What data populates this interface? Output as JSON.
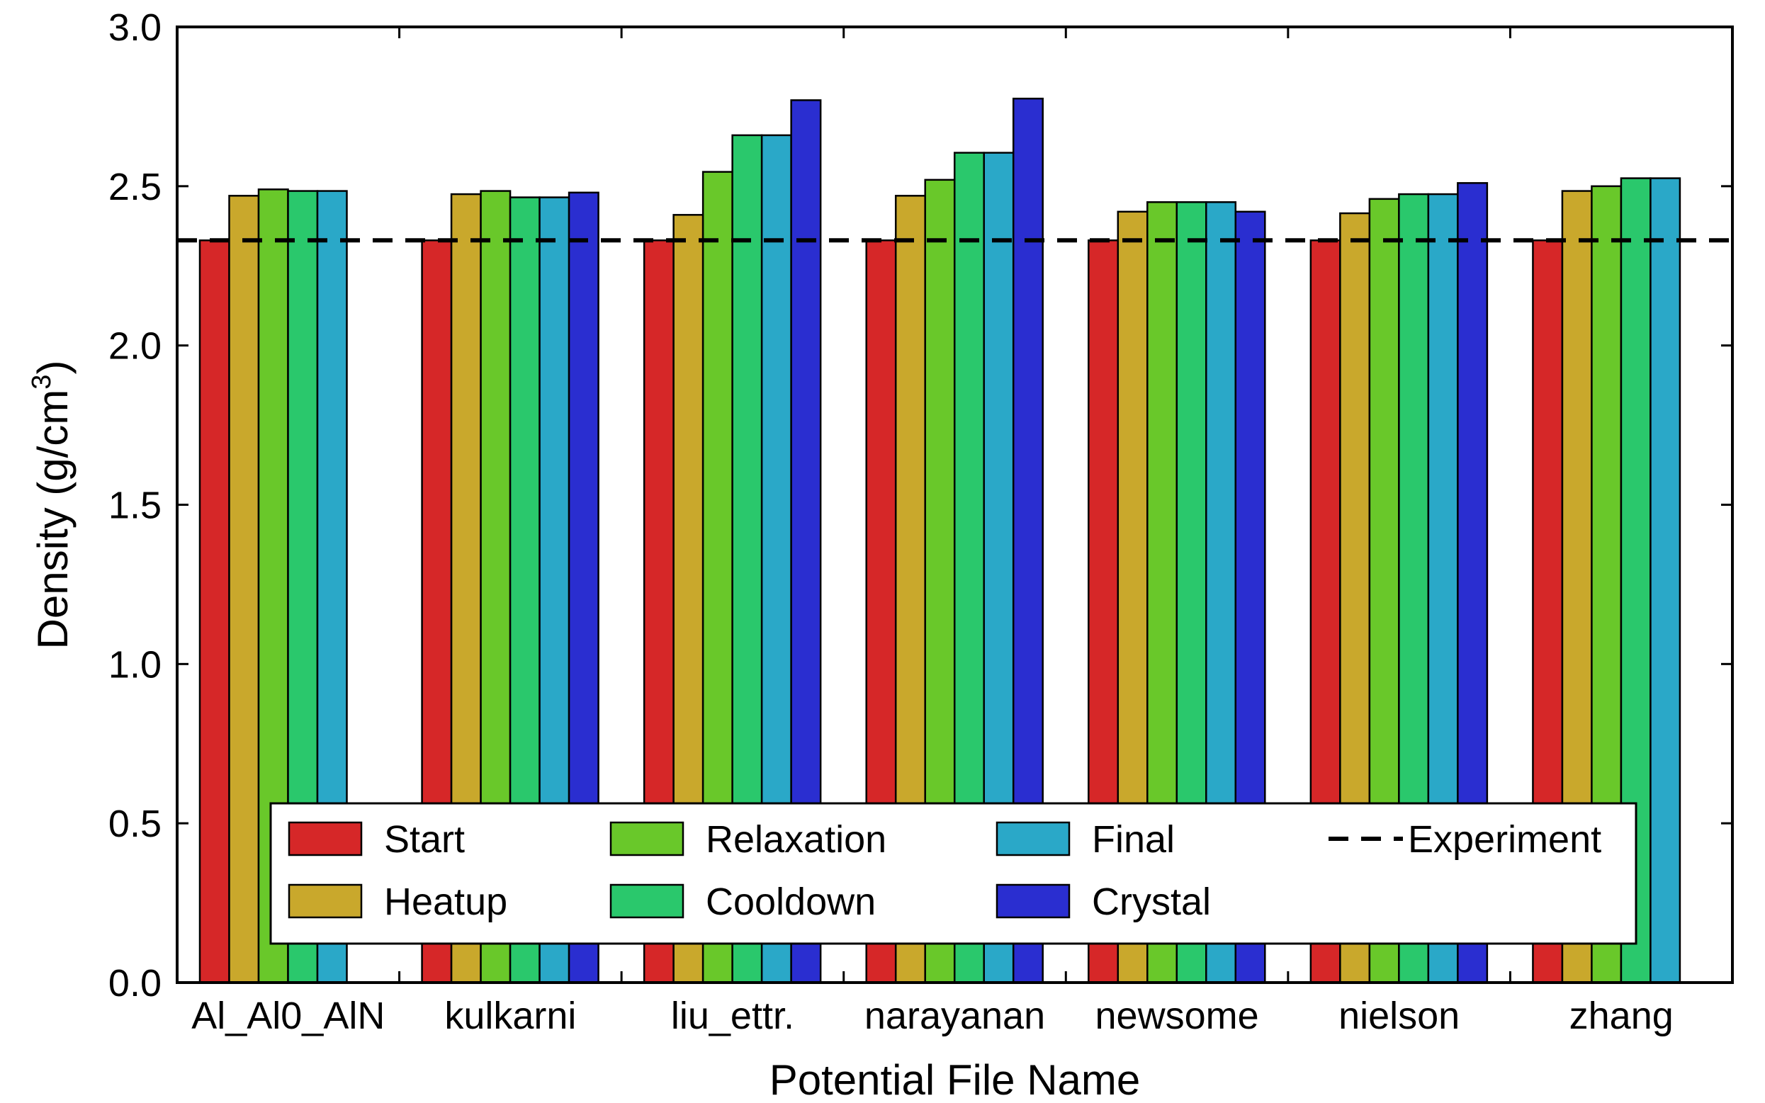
{
  "chart_data": {
    "type": "bar",
    "xlabel": "Potential File Name",
    "ylabel_main": "Density (g/cm",
    "ylabel_sup": "3",
    "ylabel_end": ")",
    "ylim": [
      0.0,
      3.0
    ],
    "yticks": [
      "0.0",
      "0.5",
      "1.0",
      "1.5",
      "2.0",
      "2.5",
      "3.0"
    ],
    "ytick_values": [
      0.0,
      0.5,
      1.0,
      1.5,
      2.0,
      2.5,
      3.0
    ],
    "categories": [
      "Al_Al0_AlN",
      "kulkarni",
      "liu_ettr.",
      "narayanan",
      "newsome",
      "nielson",
      "zhang"
    ],
    "series": [
      {
        "name": "Start",
        "color": "#d62728",
        "values": [
          2.33,
          2.33,
          2.33,
          2.33,
          2.33,
          2.33,
          2.33
        ]
      },
      {
        "name": "Heatup",
        "color": "#c9a82c",
        "values": [
          2.47,
          2.475,
          2.41,
          2.47,
          2.42,
          2.415,
          2.485
        ]
      },
      {
        "name": "Relaxation",
        "color": "#69c82a",
        "values": [
          2.49,
          2.485,
          2.545,
          2.52,
          2.45,
          2.46,
          2.5
        ]
      },
      {
        "name": "Cooldown",
        "color": "#2ac86c",
        "values": [
          2.485,
          2.465,
          2.66,
          2.605,
          2.45,
          2.475,
          2.525
        ]
      },
      {
        "name": "Final",
        "color": "#2aa8c8",
        "values": [
          2.485,
          2.465,
          2.66,
          2.605,
          2.45,
          2.475,
          2.525
        ]
      },
      {
        "name": "Crystal",
        "color": "#2a2ed0",
        "values": [
          null,
          2.48,
          2.77,
          2.775,
          2.42,
          2.51,
          null
        ]
      }
    ],
    "reference_line": {
      "name": "Experiment",
      "value": 2.33,
      "style": "dashed",
      "color": "#000000"
    },
    "legend": {
      "position": "lower-center",
      "columns": 4
    },
    "grid": false
  }
}
